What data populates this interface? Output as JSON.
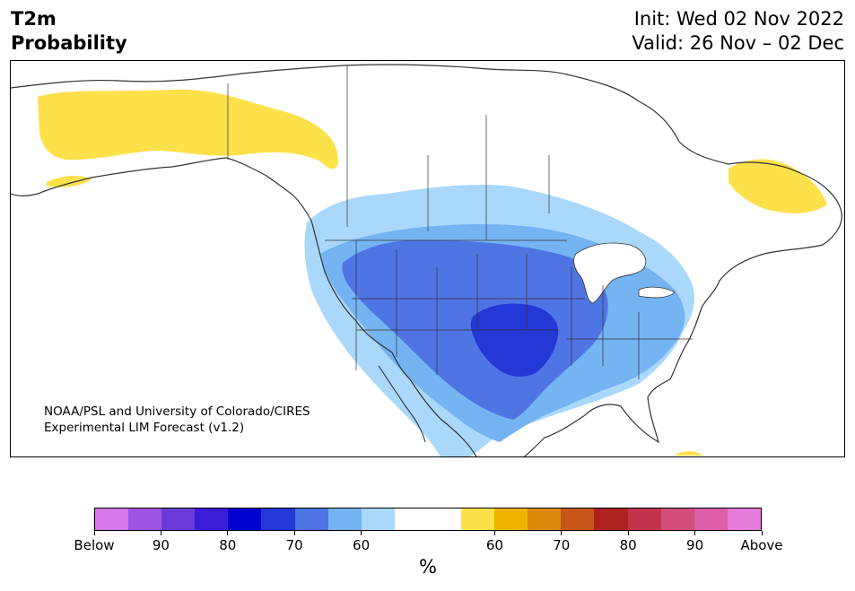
{
  "header": {
    "title_line1": "T2m",
    "title_line2": "Probability",
    "init": "Init: Wed 02 Nov 2022",
    "valid": "Valid: 26 Nov – 02 Dec"
  },
  "credit": {
    "line1": "NOAA/PSL and University of Colorado/CIRES",
    "line2": "Experimental LIM Forecast (v1.2)"
  },
  "map": {
    "region": "North America",
    "colors": {
      "below_60": "#a9d8fb",
      "below_70": "#75b3f3",
      "below_80": "#4f74e4",
      "below_90": "#2338d6",
      "above_60": "#fde14b",
      "land_outline": "#333333"
    }
  },
  "colorbar": {
    "colors": [
      "#d677ea",
      "#9c55e0",
      "#6b3bd9",
      "#3a1dd4",
      "#0000cf",
      "#2338d6",
      "#4f74e4",
      "#75b3f3",
      "#a9d8fb",
      "#ffffff",
      "#ffffff",
      "#fde14b",
      "#f0b400",
      "#dc8a0c",
      "#c7561a",
      "#ae2121",
      "#c3344b",
      "#d14d7b",
      "#dd5ea8",
      "#e77bdc"
    ],
    "tick_labels": [
      "Below",
      "90",
      "80",
      "70",
      "60",
      "60",
      "70",
      "80",
      "90",
      "Above"
    ],
    "units": "%"
  }
}
